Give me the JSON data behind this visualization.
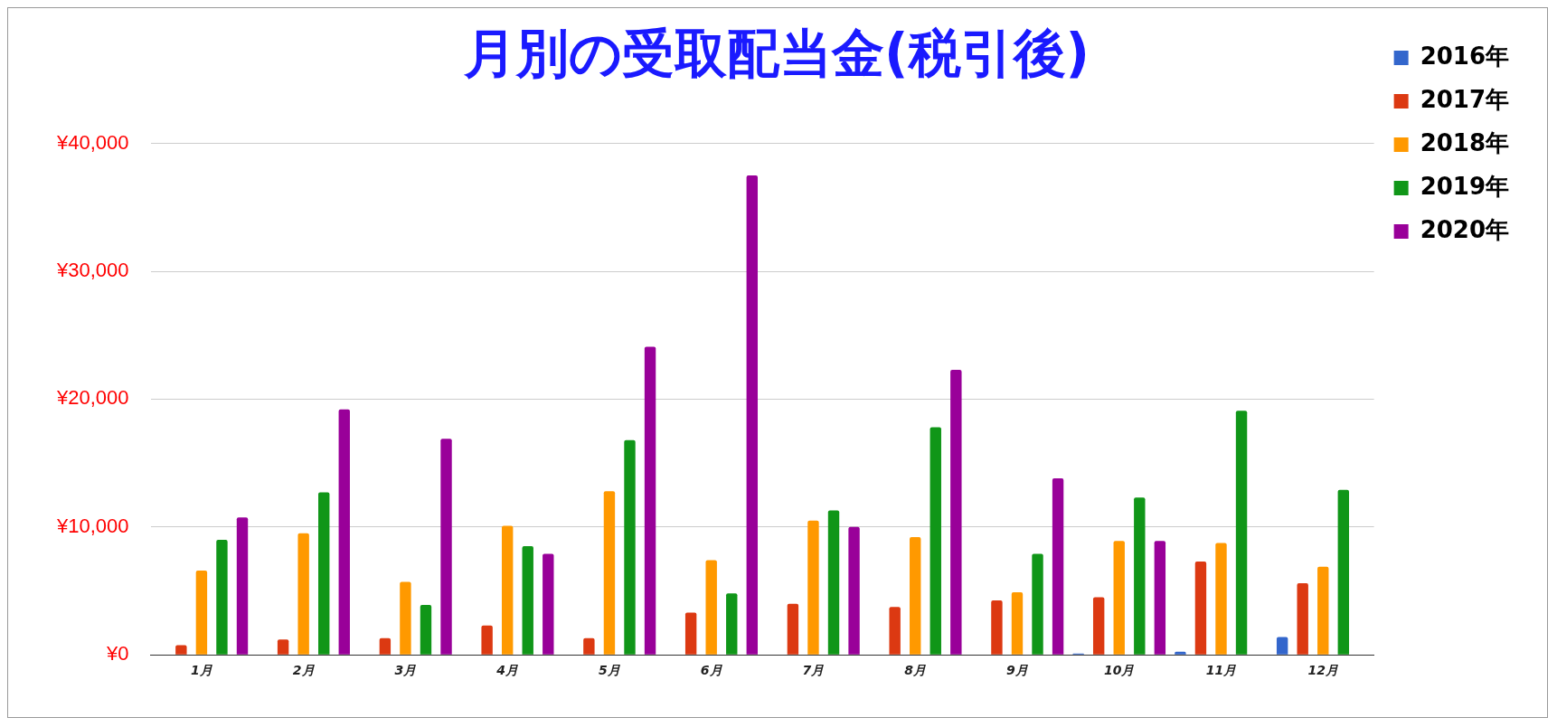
{
  "chart_data": {
    "type": "bar",
    "title": "月別の受取配当金(税引後)",
    "categories": [
      "1月",
      "2月",
      "3月",
      "4月",
      "5月",
      "6月",
      "7月",
      "8月",
      "9月",
      "10月",
      "11月",
      "12月"
    ],
    "series": [
      {
        "name": "2016年",
        "color": "#3366cc",
        "values": [
          null,
          null,
          null,
          null,
          null,
          null,
          null,
          null,
          null,
          100,
          250,
          1400
        ]
      },
      {
        "name": "2017年",
        "color": "#dc3912",
        "values": [
          750,
          1200,
          1300,
          2300,
          1300,
          3300,
          4000,
          3750,
          4250,
          4500,
          7300,
          5600
        ]
      },
      {
        "name": "2018年",
        "color": "#ff9900",
        "values": [
          6600,
          9500,
          5700,
          10100,
          12800,
          7400,
          10500,
          9200,
          4900,
          8900,
          8750,
          6900
        ]
      },
      {
        "name": "2019年",
        "color": "#109618",
        "values": [
          9000,
          12700,
          3900,
          8500,
          16800,
          4800,
          11300,
          17800,
          7900,
          12300,
          19100,
          12900
        ]
      },
      {
        "name": "2020年",
        "color": "#990099",
        "values": [
          10750,
          19200,
          16900,
          7900,
          24100,
          37500,
          10000,
          22300,
          13800,
          8900,
          null,
          null
        ]
      }
    ],
    "ylim": [
      0,
      40000
    ],
    "yticks": [
      {
        "value": 0,
        "label": "¥0"
      },
      {
        "value": 10000,
        "label": "¥10,000"
      },
      {
        "value": 20000,
        "label": "¥20,000"
      },
      {
        "value": 30000,
        "label": "¥30,000"
      },
      {
        "value": 40000,
        "label": "¥40,000"
      }
    ],
    "grid": "y",
    "legend": "top right"
  }
}
